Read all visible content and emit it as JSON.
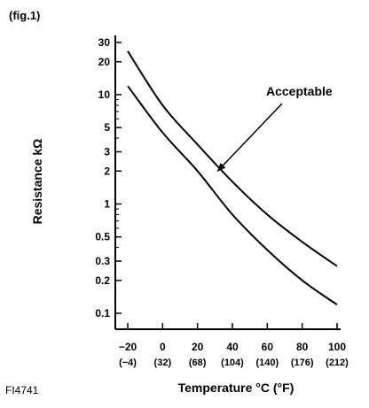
{
  "figure_label": "(fig.1)",
  "figure_code": "FI4741",
  "chart_data": {
    "type": "line",
    "xlabel": "Temperature °C (°F)",
    "ylabel": "Resistance kΩ",
    "y_scale": "log",
    "xlim": [
      -20,
      100
    ],
    "ylim": [
      0.1,
      30
    ],
    "grid": false,
    "x_ticks": [
      {
        "value": -20,
        "label": "−20",
        "sublabel": "(−4)"
      },
      {
        "value": 0,
        "label": "0",
        "sublabel": "(32)"
      },
      {
        "value": 20,
        "label": "20",
        "sublabel": "(68)"
      },
      {
        "value": 40,
        "label": "40",
        "sublabel": "(104)"
      },
      {
        "value": 60,
        "label": "60",
        "sublabel": "(140)"
      },
      {
        "value": 80,
        "label": "80",
        "sublabel": "(176)"
      },
      {
        "value": 100,
        "label": "100",
        "sublabel": "(212)"
      }
    ],
    "y_ticks": [
      {
        "value": 30,
        "label": "30"
      },
      {
        "value": 20,
        "label": "20"
      },
      {
        "value": 10,
        "label": "10"
      },
      {
        "value": 5,
        "label": "5"
      },
      {
        "value": 3,
        "label": "3"
      },
      {
        "value": 2,
        "label": "2"
      },
      {
        "value": 1,
        "label": "1"
      },
      {
        "value": 0.5,
        "label": "0.5"
      },
      {
        "value": 0.3,
        "label": "0.3"
      },
      {
        "value": 0.2,
        "label": "0.2"
      },
      {
        "value": 0.1,
        "label": "0.1"
      }
    ],
    "y_minor_ticks": [
      9,
      8,
      7,
      6,
      4,
      0.9,
      0.8,
      0.7,
      0.6,
      0.4
    ],
    "series": [
      {
        "x": [
          -20,
          0,
          20,
          40,
          60,
          80,
          100
        ],
        "y": [
          25,
          8,
          3.5,
          1.6,
          0.8,
          0.45,
          0.27
        ]
      },
      {
        "x": [
          -20,
          0,
          20,
          40,
          60,
          80,
          100
        ],
        "y": [
          12,
          4.5,
          2.0,
          0.8,
          0.38,
          0.2,
          0.12
        ]
      }
    ],
    "annotations": [
      {
        "text": "Acceptable",
        "arrow_to": {
          "x": 30,
          "y": 2.0
        }
      }
    ]
  }
}
